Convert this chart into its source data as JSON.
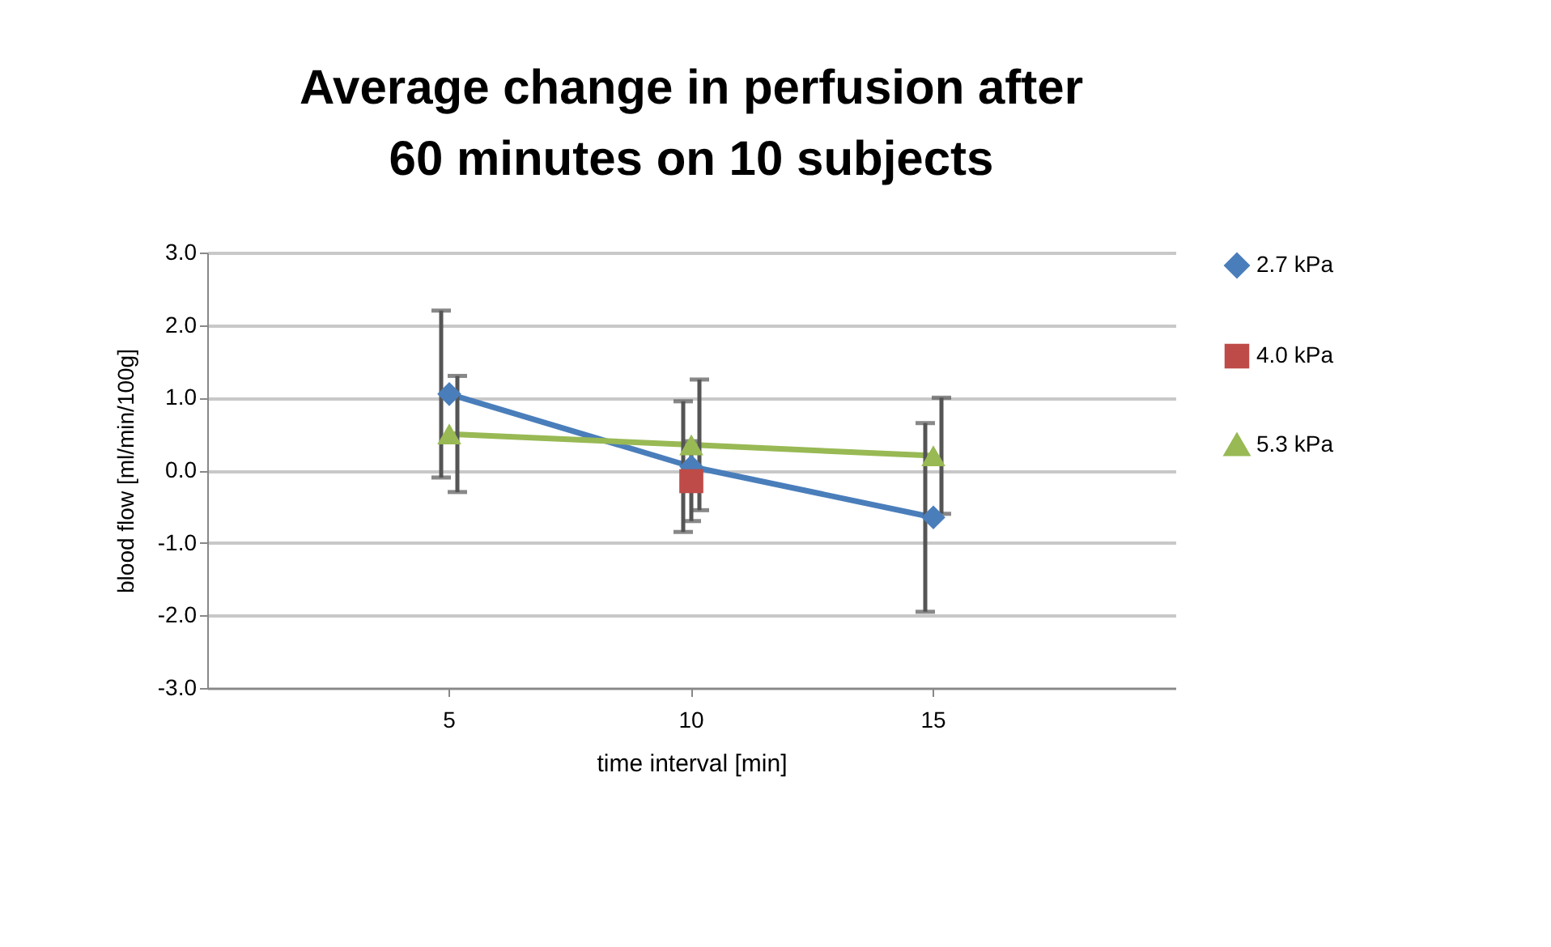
{
  "chart_data": {
    "type": "line",
    "title": "Average change in perfusion after 60 minutes on 10 subjects",
    "xlabel": "time interval [min]",
    "ylabel": "blood flow  [ml/min/100g]",
    "categories": [
      "5",
      "10",
      "15"
    ],
    "series": [
      {
        "name": "2.7 kPa",
        "color": "#4a7ebb",
        "marker": "diamond",
        "values": [
          1.05,
          0.05,
          -0.65
        ],
        "errors": [
          1.15,
          0.9,
          1.3
        ]
      },
      {
        "name": "4.0 kPa",
        "color": "#be4b48",
        "marker": "square",
        "values": [
          null,
          -0.15,
          null
        ],
        "errors": [
          null,
          0.55,
          null
        ]
      },
      {
        "name": "5.3 kPa",
        "color": "#98b954",
        "marker": "triangle",
        "values": [
          0.5,
          0.35,
          0.2
        ],
        "errors": [
          0.8,
          0.9,
          0.8
        ]
      }
    ],
    "ylim": [
      -3,
      3
    ],
    "yticks": [
      {
        "value": -3,
        "label": "-3.0"
      },
      {
        "value": -2,
        "label": "-2.0"
      },
      {
        "value": -1,
        "label": "-1.0"
      },
      {
        "value": 0,
        "label": "0.0"
      },
      {
        "value": 1,
        "label": "1.0"
      },
      {
        "value": 2,
        "label": "2.0"
      },
      {
        "value": 3,
        "label": "3.0"
      }
    ],
    "grid": "y",
    "legend": "right"
  }
}
